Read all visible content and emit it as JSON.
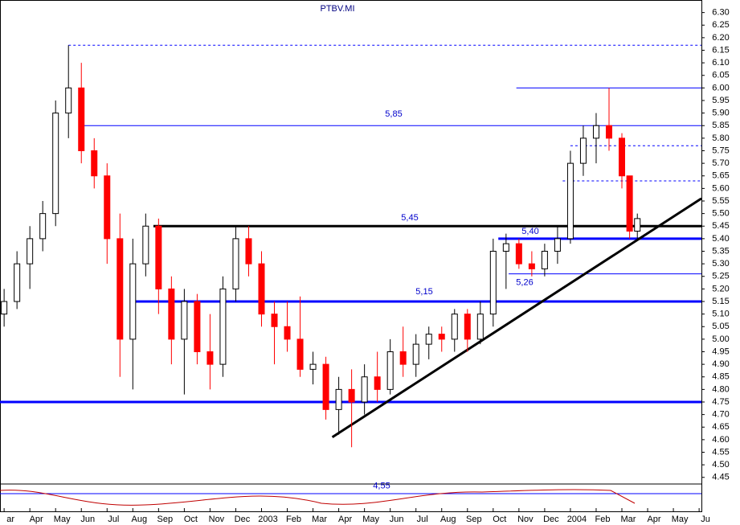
{
  "chart_data": {
    "type": "candlestick",
    "title": "PTBV.MI",
    "x": [
      0,
      0.5,
      1,
      1.5,
      2,
      2.5,
      3,
      3.5,
      4,
      4.5,
      5,
      5.5,
      6,
      6.5,
      7,
      7.5,
      8,
      8.5,
      9,
      9.5,
      10,
      10.5,
      11,
      11.5,
      12,
      12.5,
      13,
      13.5,
      14,
      14.5,
      15,
      15.5,
      16,
      16.5,
      17,
      17.5,
      18,
      18.5,
      19,
      19.5,
      20,
      20.5,
      21,
      21.5,
      22,
      22.5,
      23,
      23.5,
      24,
      24.3,
      24.6
    ],
    "open": [
      5.1,
      5.15,
      5.3,
      5.4,
      5.5,
      5.9,
      6.0,
      5.75,
      5.65,
      5.4,
      5.0,
      5.3,
      5.45,
      5.2,
      5.0,
      5.15,
      4.95,
      4.9,
      5.2,
      5.4,
      5.3,
      5.1,
      5.05,
      5.0,
      4.88,
      4.9,
      4.72,
      4.8,
      4.75,
      4.85,
      4.8,
      4.95,
      4.9,
      4.98,
      5.02,
      5.0,
      5.1,
      5.0,
      5.1,
      5.35,
      5.38,
      5.3,
      5.28,
      5.35,
      5.4,
      5.7,
      5.8,
      5.85,
      5.8,
      5.65,
      5.43
    ],
    "high": [
      5.2,
      5.35,
      5.45,
      5.55,
      5.95,
      6.17,
      6.1,
      5.8,
      5.7,
      5.5,
      5.4,
      5.5,
      5.48,
      5.25,
      5.2,
      5.18,
      5.1,
      5.25,
      5.45,
      5.45,
      5.35,
      5.15,
      5.15,
      5.17,
      4.95,
      4.93,
      4.85,
      4.88,
      4.9,
      4.95,
      5.0,
      5.05,
      5.02,
      5.05,
      5.05,
      5.12,
      5.12,
      5.15,
      5.4,
      5.42,
      5.4,
      5.35,
      5.38,
      5.45,
      5.75,
      5.85,
      5.9,
      6.0,
      5.82,
      5.65,
      5.5
    ],
    "low": [
      5.05,
      5.12,
      5.2,
      5.35,
      5.45,
      5.8,
      5.7,
      5.6,
      5.3,
      4.85,
      4.8,
      5.25,
      5.1,
      4.9,
      4.78,
      4.9,
      4.8,
      4.85,
      5.15,
      5.25,
      5.05,
      4.9,
      4.95,
      4.85,
      4.82,
      4.68,
      4.62,
      4.57,
      4.7,
      4.75,
      4.78,
      4.85,
      4.85,
      4.92,
      4.95,
      4.95,
      4.95,
      4.98,
      5.05,
      5.2,
      5.28,
      5.25,
      5.25,
      5.3,
      5.38,
      5.65,
      5.7,
      5.75,
      5.6,
      5.4,
      5.4
    ],
    "close": [
      5.15,
      5.3,
      5.4,
      5.5,
      5.9,
      6.0,
      5.75,
      5.65,
      5.4,
      5.0,
      5.3,
      5.45,
      5.2,
      5.0,
      5.15,
      4.95,
      4.9,
      5.2,
      5.4,
      5.3,
      5.1,
      5.05,
      5.0,
      4.88,
      4.9,
      4.72,
      4.8,
      4.75,
      4.85,
      4.8,
      4.95,
      4.9,
      4.98,
      5.02,
      5.0,
      5.1,
      5.0,
      5.1,
      5.35,
      5.38,
      5.3,
      5.28,
      5.35,
      5.4,
      5.7,
      5.8,
      5.85,
      5.8,
      5.65,
      5.43,
      5.48
    ],
    "up_color": "#ffffff",
    "down_color": "#ff0000",
    "xlim": [
      -0.16,
      27.09
    ],
    "xticks": [
      {
        "value": 0,
        "label": "ar"
      },
      {
        "value": 1,
        "label": "Apr"
      },
      {
        "value": 2,
        "label": "May"
      },
      {
        "value": 3,
        "label": "Jun"
      },
      {
        "value": 4,
        "label": "Jul"
      },
      {
        "value": 5,
        "label": "Aug"
      },
      {
        "value": 6,
        "label": "Sep"
      },
      {
        "value": 7,
        "label": "Oct"
      },
      {
        "value": 8,
        "label": "Nov"
      },
      {
        "value": 9,
        "label": "Dec"
      },
      {
        "value": 10,
        "label": "2003"
      },
      {
        "value": 11,
        "label": "Feb"
      },
      {
        "value": 12,
        "label": "Mar"
      },
      {
        "value": 13,
        "label": "Apr"
      },
      {
        "value": 14,
        "label": "May"
      },
      {
        "value": 15,
        "label": "Jun"
      },
      {
        "value": 16,
        "label": "Jul"
      },
      {
        "value": 17,
        "label": "Aug"
      },
      {
        "value": 18,
        "label": "Sep"
      },
      {
        "value": 19,
        "label": "Oct"
      },
      {
        "value": 20,
        "label": "Nov"
      },
      {
        "value": 21,
        "label": "Dec"
      },
      {
        "value": 22,
        "label": "2004"
      },
      {
        "value": 23,
        "label": "Feb"
      },
      {
        "value": 24,
        "label": "Mar"
      },
      {
        "value": 25,
        "label": "Apr"
      },
      {
        "value": 26,
        "label": "May"
      },
      {
        "value": 27,
        "label": "Ju"
      }
    ],
    "ylim": [
      4.43,
      6.35
    ],
    "yticks": [
      {
        "value": 4.45,
        "label": "4.45"
      },
      {
        "value": 4.5,
        "label": "4.50"
      },
      {
        "value": 4.55,
        "label": "4.55"
      },
      {
        "value": 4.6,
        "label": "4.60"
      },
      {
        "value": 4.65,
        "label": "4.65"
      },
      {
        "value": 4.7,
        "label": "4.70"
      },
      {
        "value": 4.75,
        "label": "4.75"
      },
      {
        "value": 4.8,
        "label": "4.80"
      },
      {
        "value": 4.85,
        "label": "4.85"
      },
      {
        "value": 4.9,
        "label": "4.90"
      },
      {
        "value": 4.95,
        "label": "4.95"
      },
      {
        "value": 5.0,
        "label": "5.00"
      },
      {
        "value": 5.05,
        "label": "5.05"
      },
      {
        "value": 5.1,
        "label": "5.10"
      },
      {
        "value": 5.15,
        "label": "5.15"
      },
      {
        "value": 5.2,
        "label": "5.20"
      },
      {
        "value": 5.25,
        "label": "5.25"
      },
      {
        "value": 5.3,
        "label": "5.30"
      },
      {
        "value": 5.35,
        "label": "5.35"
      },
      {
        "value": 5.4,
        "label": "5.40"
      },
      {
        "value": 5.45,
        "label": "5.45"
      },
      {
        "value": 5.5,
        "label": "5.50"
      },
      {
        "value": 5.55,
        "label": "5.55"
      },
      {
        "value": 5.6,
        "label": "5.60"
      },
      {
        "value": 5.65,
        "label": "5.65"
      },
      {
        "value": 5.7,
        "label": "5.70"
      },
      {
        "value": 5.75,
        "label": "5.75"
      },
      {
        "value": 5.8,
        "label": "5.80"
      },
      {
        "value": 5.85,
        "label": "5.85"
      },
      {
        "value": 5.9,
        "label": "5.90"
      },
      {
        "value": 5.95,
        "label": "5.95"
      },
      {
        "value": 6.0,
        "label": "6.00"
      },
      {
        "value": 6.05,
        "label": "6.05"
      },
      {
        "value": 6.1,
        "label": "6.10"
      },
      {
        "value": 6.15,
        "label": "6.15"
      },
      {
        "value": 6.2,
        "label": "6.20"
      },
      {
        "value": 6.25,
        "label": "6.25"
      },
      {
        "value": 6.3,
        "label": "6.30"
      }
    ],
    "levels": [
      {
        "value": 4.75,
        "x_start": -0.16,
        "color": "#0000ff",
        "width": 3,
        "dashed": false
      },
      {
        "value": 5.15,
        "x_start": 4.9,
        "color": "#0000ff",
        "width": 3,
        "dashed": false
      },
      {
        "value": 5.4,
        "x_start": 19.2,
        "color": "#0000ff",
        "width": 3,
        "dashed": false
      },
      {
        "value": 5.45,
        "x_start": 5.8,
        "color": "#000000",
        "width": 3,
        "dashed": false
      },
      {
        "value": 5.85,
        "x_start": 3.1,
        "color": "#0000ff",
        "width": 1,
        "dashed": false
      },
      {
        "value": 6.0,
        "x_start": 19.9,
        "color": "#0000ff",
        "width": 1,
        "dashed": false
      },
      {
        "value": 5.26,
        "x_start": 19.6,
        "color": "#0000ff",
        "width": 1,
        "dashed": false
      },
      {
        "value": 6.17,
        "x_start": 2.5,
        "color": "#0000ff",
        "width": 1,
        "dashed": true
      },
      {
        "value": 5.77,
        "x_start": 22.0,
        "color": "#0000ff",
        "width": 1,
        "dashed": true
      },
      {
        "value": 5.63,
        "x_start": 21.7,
        "color": "#0000ff",
        "width": 1,
        "dashed": true
      }
    ],
    "trendline": {
      "x": [
        12.75,
        27.09
      ],
      "y": [
        4.61,
        5.56
      ],
      "color": "#000000"
    },
    "annotations": [
      {
        "value": 5.85,
        "label": "5,85"
      },
      {
        "value": 5.45,
        "label": "5,45"
      },
      {
        "value": 5.4,
        "label": "5,40"
      },
      {
        "value": 5.15,
        "label": "5,15"
      },
      {
        "value": 5.26,
        "label": "5,26"
      },
      {
        "value": 4.55,
        "label": "4,55"
      }
    ]
  }
}
